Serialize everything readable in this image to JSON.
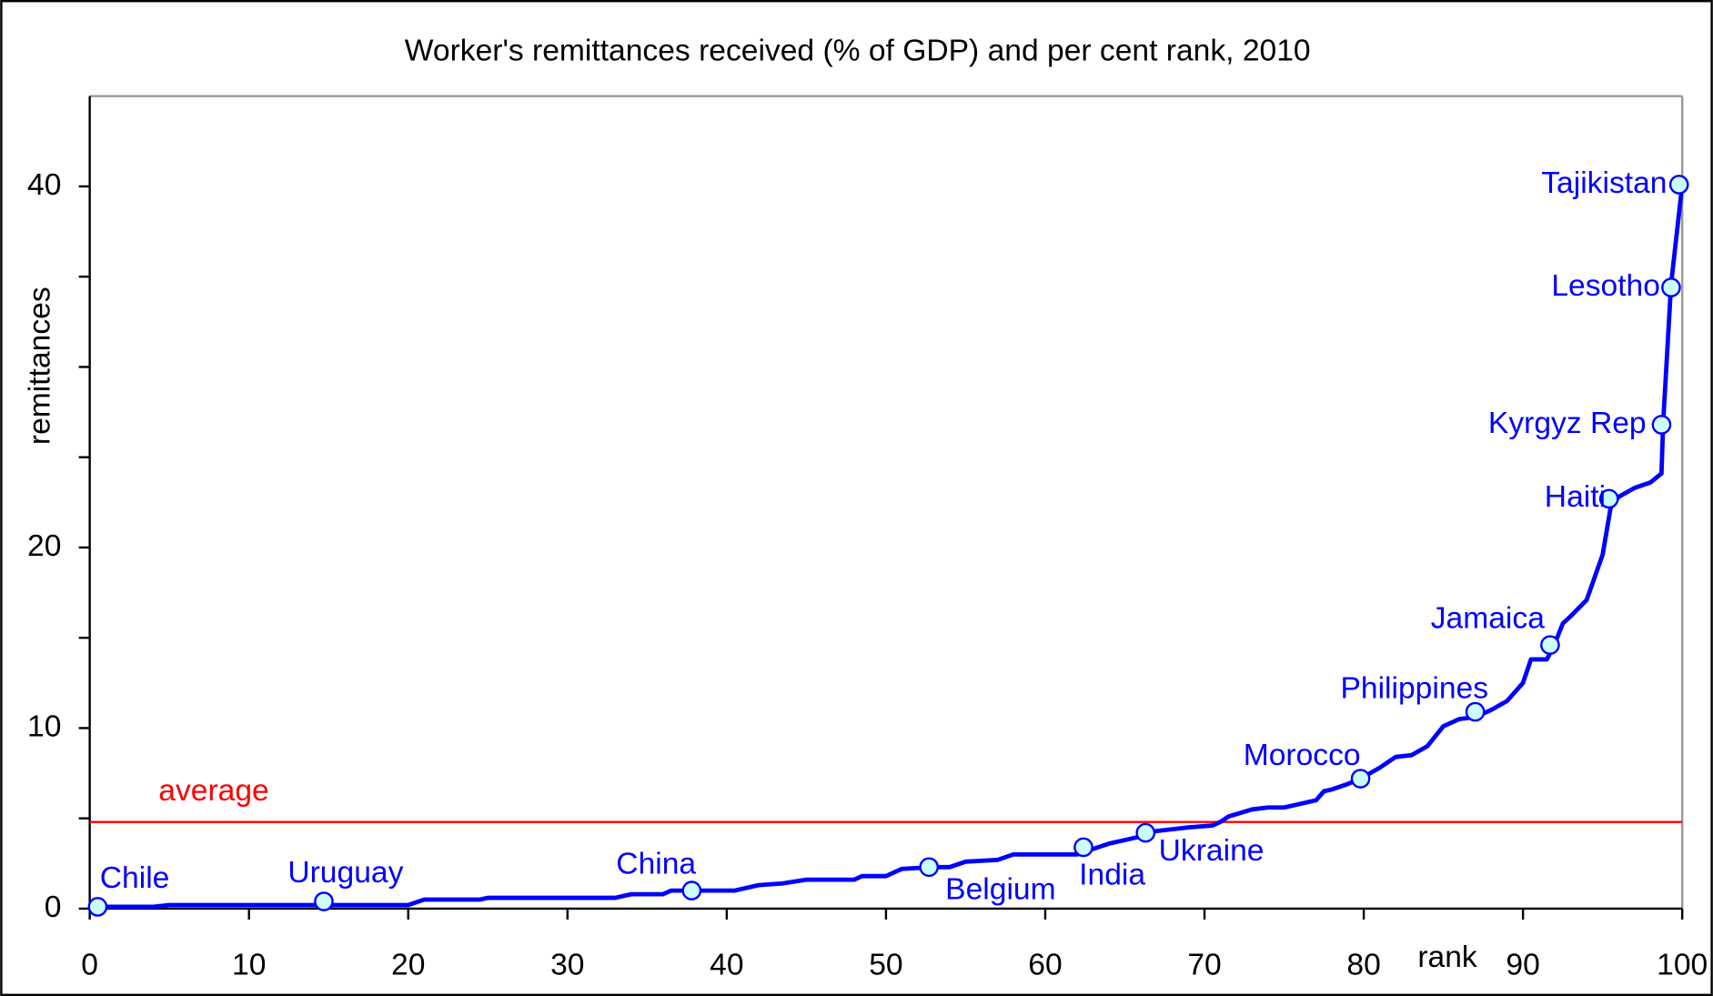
{
  "chart_data": {
    "type": "line",
    "title": "Worker's remittances received (% of GDP) and per cent rank, 2010",
    "xlabel": "rank",
    "ylabel": "remittances",
    "color": "#0000ff",
    "marker_color": "#ccffff",
    "x": [
      0.5,
      4,
      5,
      20,
      21,
      24.5,
      25,
      33,
      34,
      36,
      36.5,
      40.5,
      41,
      42,
      43.5,
      45,
      48,
      48.5,
      50,
      51,
      53,
      54,
      55,
      57,
      58,
      62,
      63,
      64,
      65,
      66,
      67,
      68,
      69,
      70.5,
      71,
      71.5,
      73,
      74,
      75,
      76,
      77,
      77.5,
      78,
      79,
      80,
      81,
      82,
      83,
      84,
      85,
      86,
      87,
      88,
      89,
      90,
      90.5,
      91.5,
      92,
      92.5,
      93,
      94,
      95,
      95.5,
      96,
      97,
      98,
      98.7,
      98.8,
      99.3,
      100
    ],
    "values": [
      0.1,
      0.1,
      0.2,
      0.2,
      0.5,
      0.5,
      0.6,
      0.6,
      0.8,
      0.8,
      1.0,
      1.0,
      1.1,
      1.3,
      1.4,
      1.6,
      1.6,
      1.8,
      1.8,
      2.2,
      2.3,
      2.3,
      2.6,
      2.7,
      3.0,
      3.0,
      3.3,
      3.6,
      3.8,
      4.0,
      4.3,
      4.4,
      4.5,
      4.6,
      4.8,
      5.1,
      5.5,
      5.6,
      5.6,
      5.8,
      6.0,
      6.5,
      6.6,
      6.9,
      7.3,
      7.8,
      8.4,
      8.5,
      9.0,
      10.1,
      10.5,
      10.6,
      11.0,
      11.5,
      12.5,
      13.8,
      13.8,
      14.7,
      15.8,
      16.2,
      17.1,
      19.6,
      22.2,
      22.8,
      23.3,
      23.6,
      24.1,
      26.9,
      34.6,
      40.1
    ],
    "points": [
      {
        "label": "Chile",
        "x": 0.5,
        "y": 0.1
      },
      {
        "label": "Uruguay",
        "x": 14.7,
        "y": 0.4
      },
      {
        "label": "China",
        "x": 37.8,
        "y": 1.0
      },
      {
        "label": "Belgium",
        "x": 52.7,
        "y": 2.3
      },
      {
        "label": "India",
        "x": 62.4,
        "y": 3.4
      },
      {
        "label": "Ukraine",
        "x": 66.3,
        "y": 4.2
      },
      {
        "label": "Morocco",
        "x": 79.8,
        "y": 7.2
      },
      {
        "label": "Philippines",
        "x": 87,
        "y": 10.9
      },
      {
        "label": "Jamaica",
        "x": 91.7,
        "y": 14.6
      },
      {
        "label": "Haiti",
        "x": 95.4,
        "y": 22.7
      },
      {
        "label": "Kyrgyz Rep",
        "x": 98.7,
        "y": 26.8
      },
      {
        "label": "Lesotho",
        "x": 99.3,
        "y": 34.4
      },
      {
        "label": "Tajikistan",
        "x": 99.8,
        "y": 40.1
      }
    ],
    "average": {
      "label": "average",
      "value": 4.8,
      "color": "#ff0000"
    },
    "xlim": [
      0,
      100
    ],
    "ylim": [
      0,
      45
    ],
    "xticks": [
      0,
      10,
      20,
      30,
      40,
      50,
      60,
      70,
      80,
      90,
      100
    ],
    "yticks": [
      0,
      10,
      20,
      40
    ],
    "yminor_ticks": [
      5,
      15,
      25,
      30,
      35
    ]
  }
}
